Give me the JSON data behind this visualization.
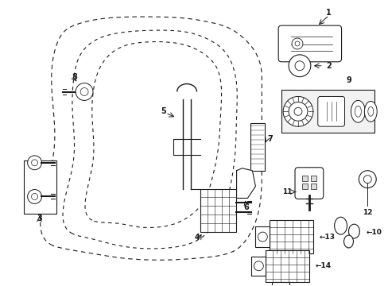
{
  "bg_color": "#ffffff",
  "fg_color": "#1a1a1a",
  "fig_width": 4.89,
  "fig_height": 3.6,
  "dpi": 100
}
